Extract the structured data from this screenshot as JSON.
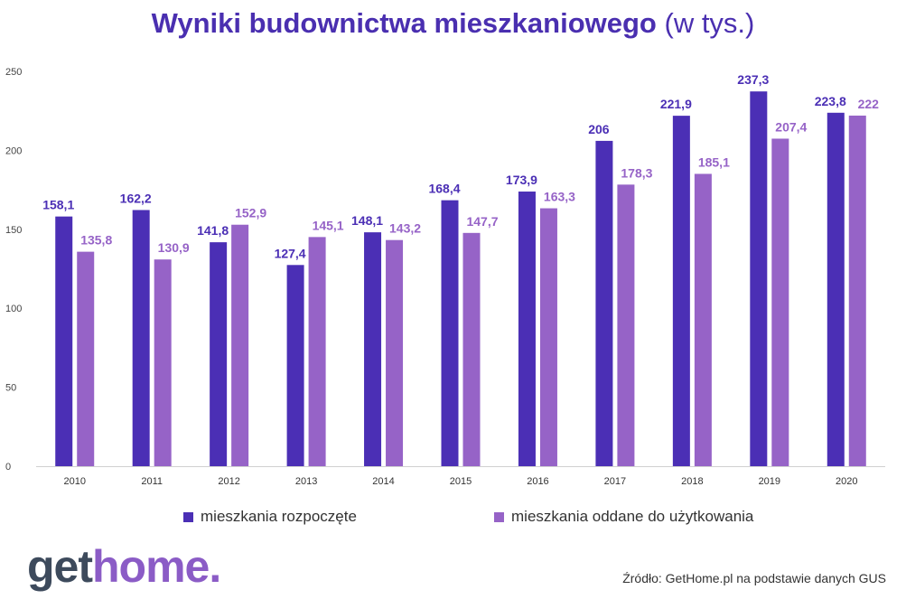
{
  "title": {
    "main": "Wyniki budownictwa mieszkaniowego",
    "sub": "(w tys.)"
  },
  "chart_data": {
    "type": "bar",
    "categories": [
      "2010",
      "2011",
      "2012",
      "2013",
      "2014",
      "2015",
      "2016",
      "2017",
      "2018",
      "2019",
      "2020"
    ],
    "series": [
      {
        "name": "mieszkania rozpoczęte",
        "color": "#4b2fb5",
        "values": [
          158.1,
          162.2,
          141.8,
          127.4,
          148.1,
          168.4,
          173.9,
          206,
          221.9,
          237.3,
          223.8
        ],
        "labels": [
          "158,1",
          "162,2",
          "141,8",
          "127,4",
          "148,1",
          "168,4",
          "173,9",
          "206",
          "221,9",
          "237,3",
          "223,8"
        ]
      },
      {
        "name": "mieszkania oddane do użytkowania",
        "color": "#9663c7",
        "values": [
          135.8,
          130.9,
          152.9,
          145.1,
          143.2,
          147.7,
          163.3,
          178.3,
          185.1,
          207.4,
          222
        ],
        "labels": [
          "135,8",
          "130,9",
          "152,9",
          "145,1",
          "143,2",
          "147,7",
          "163,3",
          "178,3",
          "185,1",
          "207,4",
          "222"
        ]
      }
    ],
    "yticks": [
      "0",
      "50",
      "100",
      "150",
      "200",
      "250"
    ],
    "ylim": [
      0,
      250
    ],
    "legend_position": "bottom",
    "grid": false
  },
  "legend": {
    "items": [
      "mieszkania rozpoczęte",
      "mieszkania oddane do użytkowania"
    ]
  },
  "logo": {
    "part1": "get",
    "part2": "home."
  },
  "source": "Źródło: GetHome.pl na podstawie danych GUS"
}
